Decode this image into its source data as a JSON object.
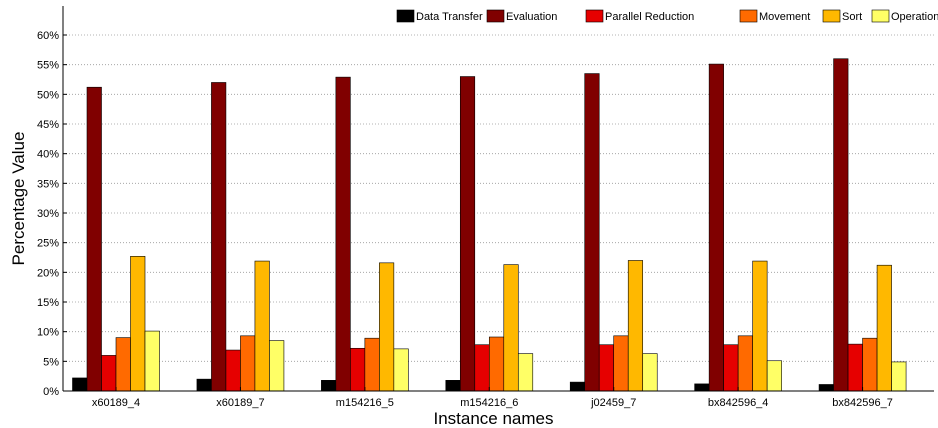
{
  "chart_data": {
    "type": "bar",
    "xlabel": "Instance names",
    "ylabel": "Percentage Value",
    "ylim": [
      0,
      60
    ],
    "y_ticks": [
      "0%",
      "5%",
      "10%",
      "15%",
      "20%",
      "25%",
      "30%",
      "35%",
      "40%",
      "45%",
      "50%",
      "55%",
      "60%"
    ],
    "grid": true,
    "legend_position": "top-right",
    "categories": [
      "x60189_4",
      "x60189_7",
      "m154216_5",
      "m154216_6",
      "j02459_7",
      "bx842596_4",
      "bx842596_7"
    ],
    "series": [
      {
        "name": "Data Transfer",
        "color": "#000000",
        "values": [
          2.2,
          2.0,
          1.8,
          1.8,
          1.5,
          1.2,
          1.1
        ]
      },
      {
        "name": "Evaluation",
        "color": "#800000",
        "values": [
          51.2,
          52.0,
          52.9,
          53.0,
          53.5,
          55.1,
          56.0
        ]
      },
      {
        "name": "Parallel Reduction",
        "color": "#e60000",
        "values": [
          6.0,
          6.9,
          7.2,
          7.8,
          7.8,
          7.8,
          7.9
        ]
      },
      {
        "name": "Movement",
        "color": "#ff6a00",
        "values": [
          9.0,
          9.3,
          8.9,
          9.1,
          9.3,
          9.3,
          8.9
        ]
      },
      {
        "name": "Sort",
        "color": "#ffb800",
        "values": [
          22.7,
          21.9,
          21.6,
          21.3,
          22.0,
          21.9,
          21.2
        ]
      },
      {
        "name": "Operations",
        "color": "#ffff66",
        "values": [
          10.1,
          8.5,
          7.1,
          6.3,
          6.3,
          5.1,
          4.9
        ]
      }
    ]
  }
}
